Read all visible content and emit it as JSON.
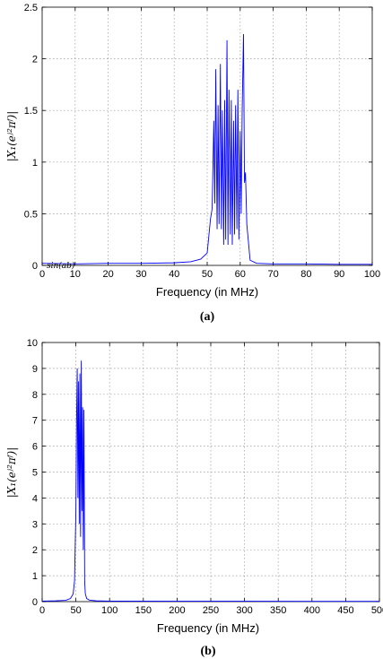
{
  "chart_data": [
    {
      "type": "line",
      "caption": "(a)",
      "xlabel": "Frequency (in MHz)",
      "ylabel": "|X_1(e^{j2πf})|",
      "ylabel_text": "|X₁(eʲ²πᶠ)|",
      "annotation": "sin(ab)",
      "xlim": [
        0,
        100
      ],
      "ylim": [
        0,
        2.5
      ],
      "x_ticks": [
        "0",
        "10",
        "20",
        "30",
        "40",
        "50",
        "60",
        "70",
        "80",
        "90",
        "100"
      ],
      "y_ticks": [
        "0",
        "0.5",
        "1",
        "1.5",
        "2",
        "2.5"
      ],
      "grid": true,
      "series": [
        {
          "color": "#0000ff",
          "x": [
            0,
            10,
            20,
            30,
            40,
            45,
            48,
            50,
            51,
            51.5,
            52,
            52.3,
            52.6,
            53,
            53.3,
            53.6,
            54,
            54.3,
            54.6,
            55,
            55.3,
            55.6,
            56,
            56.3,
            56.6,
            57,
            57.3,
            57.6,
            58,
            58.3,
            58.6,
            59,
            59.3,
            59.6,
            60,
            60.3,
            60.6,
            61,
            61.3,
            61.6,
            62,
            63,
            65,
            70,
            80,
            90,
            100
          ],
          "y": [
            0.02,
            0.015,
            0.02,
            0.02,
            0.025,
            0.035,
            0.06,
            0.12,
            0.45,
            0.55,
            1.4,
            0.6,
            1.9,
            0.35,
            1.55,
            0.4,
            1.95,
            0.35,
            1.5,
            0.2,
            1.6,
            0.25,
            2.18,
            0.2,
            1.7,
            0.3,
            1.6,
            0.2,
            1.4,
            0.3,
            1.55,
            0.35,
            1.7,
            0.25,
            1.3,
            0.5,
            1.5,
            2.24,
            0.8,
            0.9,
            0.4,
            0.05,
            0.02,
            0.015,
            0.015,
            0.01,
            0.01
          ]
        }
      ]
    },
    {
      "type": "line",
      "caption": "(b)",
      "xlabel": "Frequency (in MHz)",
      "ylabel": "|X_1(e^{j2πf})|",
      "ylabel_text": "|X₁(eʲ²πᶠ)|",
      "xlim": [
        0,
        500
      ],
      "ylim": [
        0,
        10
      ],
      "x_ticks": [
        "0",
        "50",
        "100",
        "150",
        "200",
        "250",
        "300",
        "350",
        "400",
        "450",
        "500"
      ],
      "y_ticks": [
        "0",
        "1",
        "2",
        "3",
        "4",
        "5",
        "6",
        "7",
        "8",
        "9",
        "10"
      ],
      "grid": true,
      "series": [
        {
          "color": "#0000ff",
          "x": [
            0,
            20,
            35,
            42,
            46,
            48,
            50,
            51,
            52,
            53,
            54,
            55,
            56,
            57,
            58,
            59,
            60,
            61,
            62,
            63,
            64,
            66,
            70,
            80,
            100,
            200,
            300,
            400,
            500
          ],
          "y": [
            0.02,
            0.03,
            0.05,
            0.12,
            0.3,
            0.8,
            3.5,
            7.0,
            9.0,
            4.0,
            8.5,
            3.0,
            8.8,
            2.5,
            9.3,
            3.5,
            7.5,
            2.0,
            7.4,
            0.8,
            0.3,
            0.12,
            0.06,
            0.03,
            0.02,
            0.015,
            0.015,
            0.01,
            0.01
          ]
        }
      ]
    }
  ]
}
